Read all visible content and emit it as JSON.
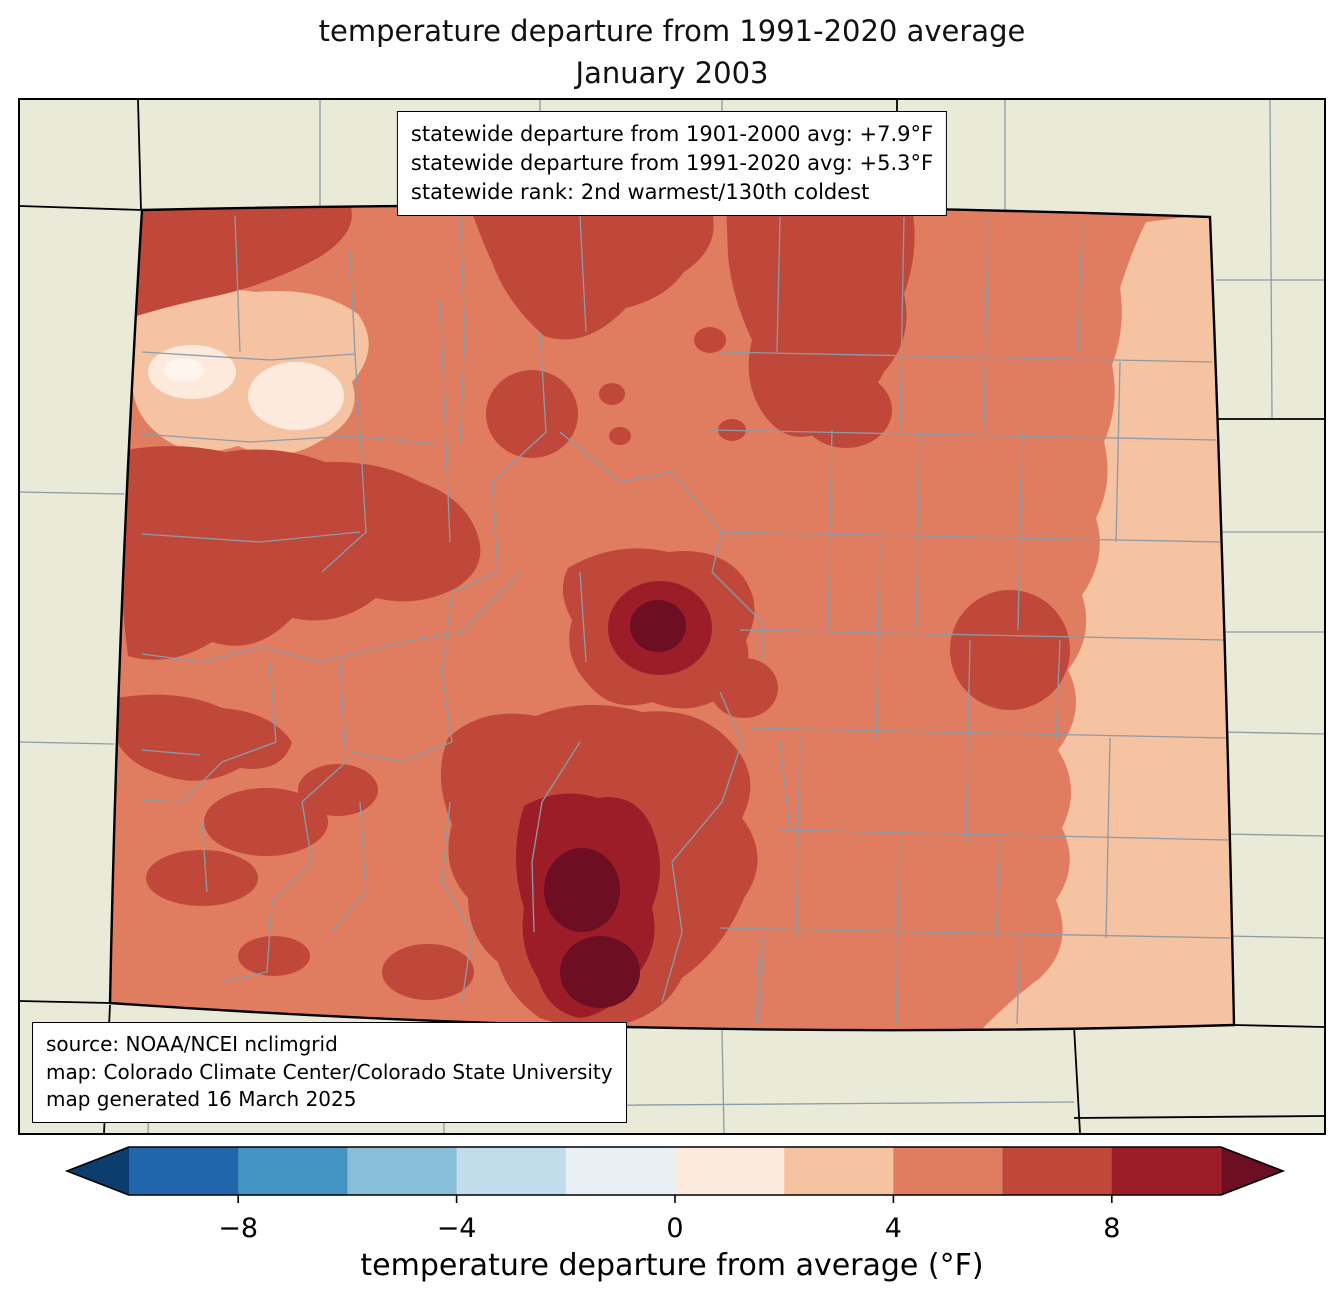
{
  "title": {
    "line1": "temperature departure from 1991-2020 average",
    "line2": "January 2003"
  },
  "stats_box": {
    "line1": "statewide departure from 1901-2000 avg: +7.9°F",
    "line2": "statewide departure from 1991-2020 avg: +5.3°F",
    "line3": "statewide rank: 2nd warmest/130th coldest"
  },
  "source_box": {
    "line1": "source: NOAA/NCEI nclimgrid",
    "line2": "map: Colorado Climate Center/Colorado State University",
    "line3": "map generated 16 March 2025"
  },
  "colorbar": {
    "label": "temperature departure from average (°F)",
    "tick_labels": [
      "−8",
      "−4",
      "0",
      "4",
      "8"
    ],
    "tick_values": [
      -8,
      -4,
      0,
      4,
      8
    ],
    "range": [
      -10,
      10
    ],
    "segment_colors": [
      "#2166ac",
      "#4393c3",
      "#8abfd9",
      "#c2dcec",
      "#e8f0f5",
      "#fbeadd",
      "#f5c2a2",
      "#e07c5f",
      "#c0483a",
      "#9c1c28"
    ],
    "arrow_low_color": "#0b3d6f",
    "arrow_high_color": "#6d0e22"
  },
  "map": {
    "state": "Colorado",
    "background": "#eaead8",
    "county_line_color": "#8e9ba6",
    "state_line_color": "#000000",
    "levels": {
      "p0_2": "#fdeadc",
      "p2_4": "#f5c2a2",
      "p4_6": "#e07c5f",
      "p6_8": "#c0483a",
      "p8_10": "#9c1c28",
      "p10_plus": "#6d0e22",
      "white_spot": "#fdf5ee"
    }
  }
}
